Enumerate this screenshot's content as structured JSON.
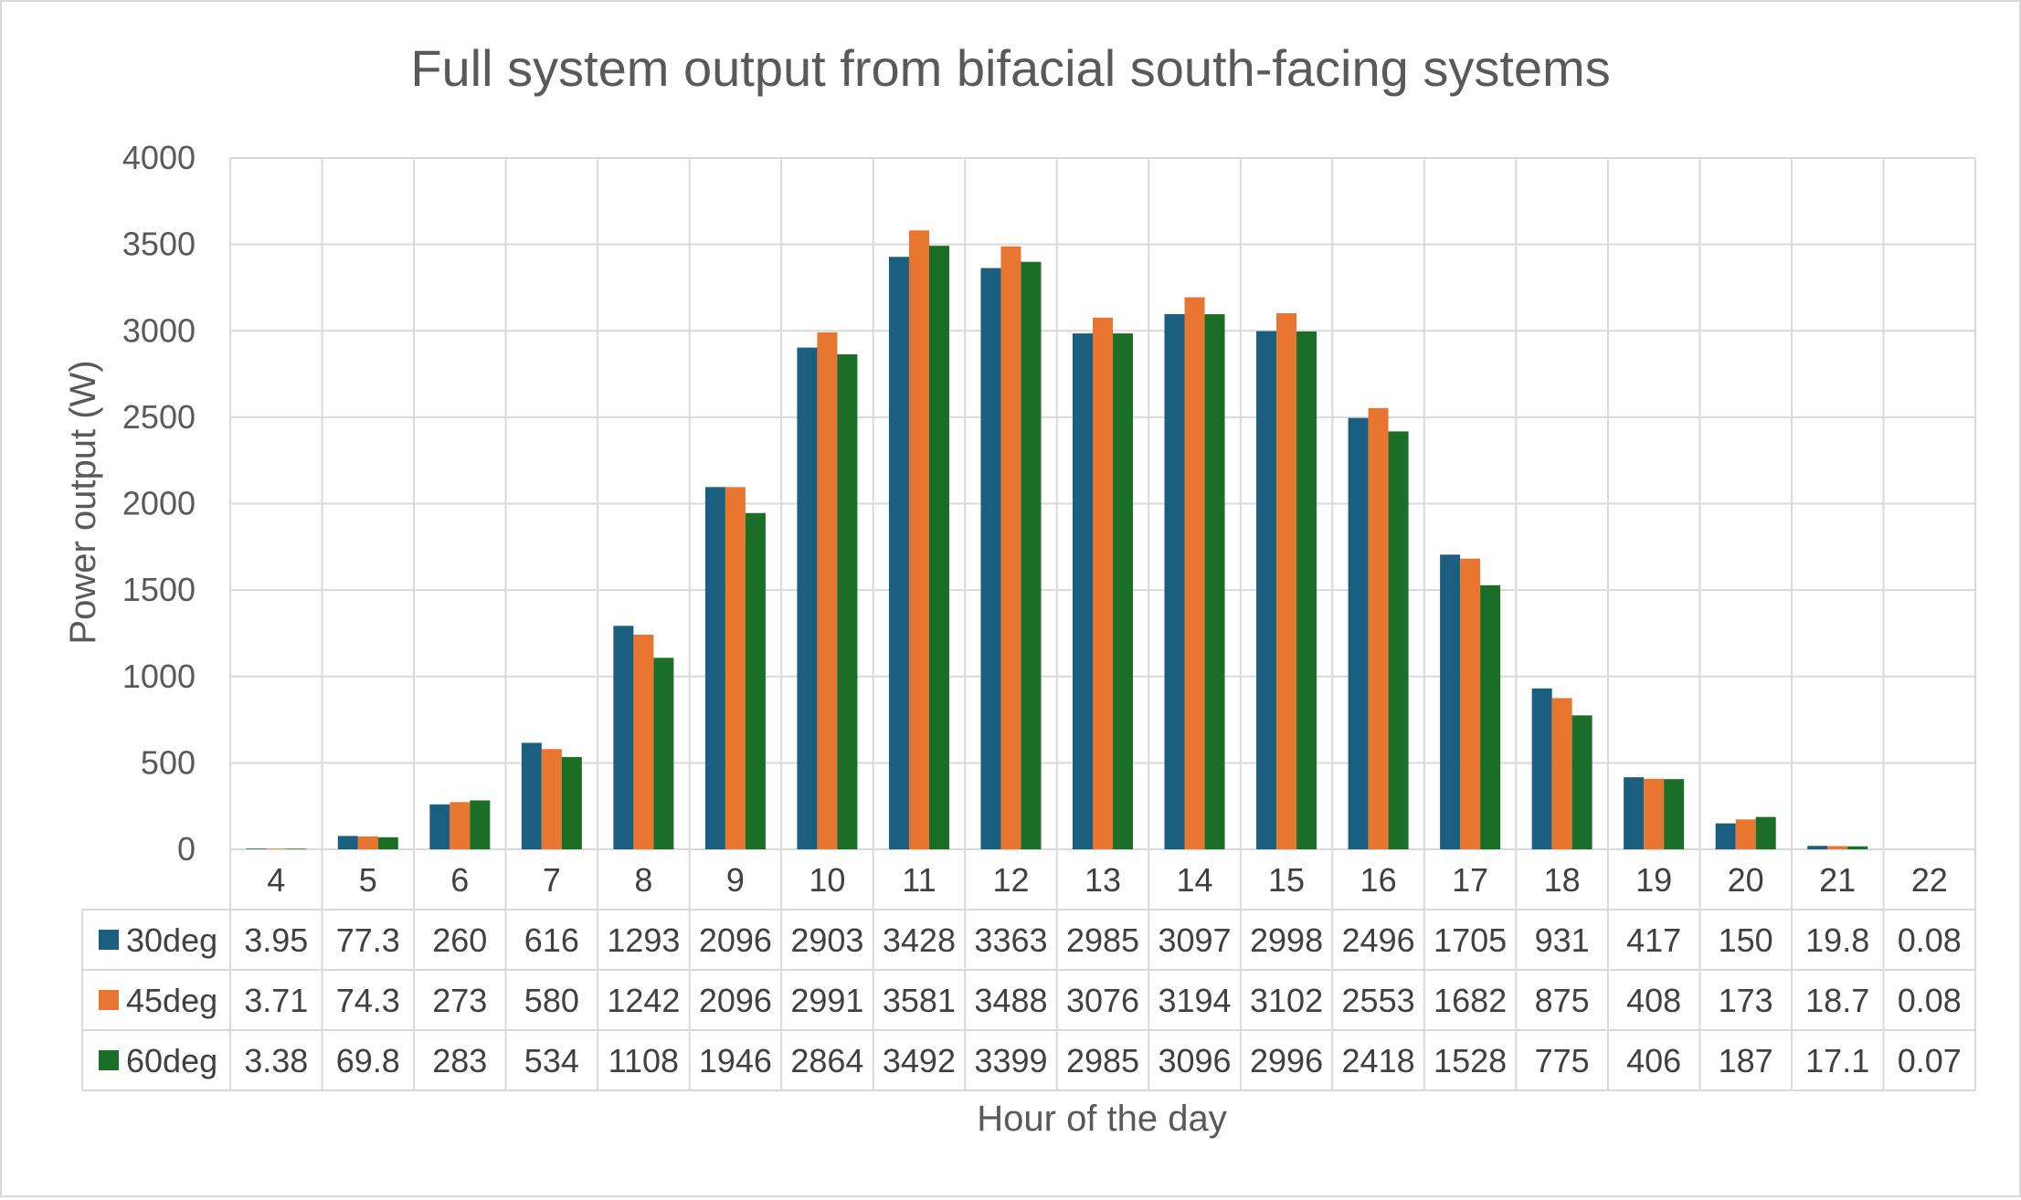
{
  "chart_data": {
    "type": "bar",
    "title": "Full system output from bifacial south-facing systems",
    "xlabel": "Hour of the day",
    "ylabel": "Power output (W)",
    "ylim": [
      0,
      4000
    ],
    "yticks": [
      0,
      500,
      1000,
      1500,
      2000,
      2500,
      3000,
      3500,
      4000
    ],
    "grid": true,
    "legend": "data-table",
    "categories": [
      "4",
      "5",
      "6",
      "7",
      "8",
      "9",
      "10",
      "11",
      "12",
      "13",
      "14",
      "15",
      "16",
      "17",
      "18",
      "19",
      "20",
      "21",
      "22"
    ],
    "series": [
      {
        "name": "30deg",
        "color": "#1a5e80",
        "values": [
          3.95,
          77.3,
          260,
          616,
          1293,
          2096,
          2903,
          3428,
          3363,
          2985,
          3097,
          2998,
          2496,
          1705,
          931,
          417,
          150,
          19.8,
          0.08
        ]
      },
      {
        "name": "45deg",
        "color": "#e87530",
        "values": [
          3.71,
          74.3,
          273,
          580,
          1242,
          2096,
          2991,
          3581,
          3488,
          3076,
          3194,
          3102,
          2553,
          1682,
          875,
          408,
          173,
          18.7,
          0.08
        ]
      },
      {
        "name": "60deg",
        "color": "#1b6e27",
        "values": [
          3.38,
          69.8,
          283,
          534,
          1108,
          1946,
          2864,
          3492,
          3399,
          2985,
          3096,
          2996,
          2418,
          1528,
          775,
          406,
          187,
          17.1,
          0.07
        ]
      }
    ]
  }
}
